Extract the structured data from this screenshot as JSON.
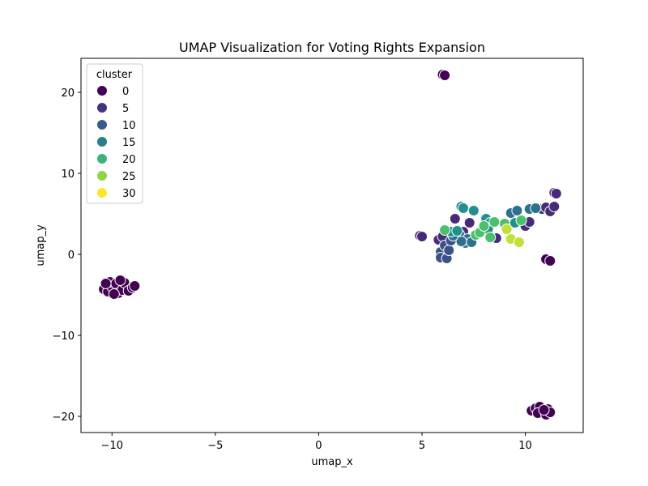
{
  "chart_data": {
    "type": "scatter",
    "title": "UMAP Visualization for Voting Rights Expansion",
    "xlabel": "umap_x",
    "ylabel": "umap_y",
    "xlim": [
      -11.5,
      12.8
    ],
    "ylim": [
      -22,
      24.2
    ],
    "xticks": [
      -10,
      -5,
      0,
      5,
      10
    ],
    "yticks": [
      -20,
      -10,
      0,
      10,
      20
    ],
    "grid": false,
    "legend": {
      "title": "cluster",
      "placement": "top-left",
      "entries": [
        {
          "label": "0",
          "color": "#440154"
        },
        {
          "label": "5",
          "color": "#46337e"
        },
        {
          "label": "10",
          "color": "#365c8d"
        },
        {
          "label": "15",
          "color": "#277f8e"
        },
        {
          "label": "20",
          "color": "#36b779"
        },
        {
          "label": "25",
          "color": "#8ed645"
        },
        {
          "label": "30",
          "color": "#fde725"
        }
      ]
    },
    "points": [
      {
        "x": -10.4,
        "y": -4.3,
        "cluster": 0
      },
      {
        "x": -10.2,
        "y": -4.6,
        "cluster": 0
      },
      {
        "x": -10.0,
        "y": -4.0,
        "cluster": 0
      },
      {
        "x": -10.1,
        "y": -3.4,
        "cluster": 0
      },
      {
        "x": -9.8,
        "y": -3.6,
        "cluster": 0
      },
      {
        "x": -9.7,
        "y": -4.8,
        "cluster": 0
      },
      {
        "x": -9.5,
        "y": -4.4,
        "cluster": 0
      },
      {
        "x": -9.4,
        "y": -3.5,
        "cluster": 0
      },
      {
        "x": -9.2,
        "y": -4.5,
        "cluster": 0
      },
      {
        "x": -9.0,
        "y": -4.1,
        "cluster": 0
      },
      {
        "x": -8.9,
        "y": -3.9,
        "cluster": 0
      },
      {
        "x": -9.9,
        "y": -4.9,
        "cluster": 0
      },
      {
        "x": -10.3,
        "y": -3.6,
        "cluster": 0
      },
      {
        "x": -9.6,
        "y": -3.2,
        "cluster": 0
      },
      {
        "x": 6.0,
        "y": 22.2,
        "cluster": 0
      },
      {
        "x": 6.1,
        "y": 22.1,
        "cluster": 0
      },
      {
        "x": 10.3,
        "y": -19.3,
        "cluster": 0
      },
      {
        "x": 10.5,
        "y": -19.0,
        "cluster": 0
      },
      {
        "x": 10.7,
        "y": -18.8,
        "cluster": 0
      },
      {
        "x": 10.6,
        "y": -19.6,
        "cluster": 0
      },
      {
        "x": 11.0,
        "y": -19.8,
        "cluster": 0
      },
      {
        "x": 11.1,
        "y": -19.1,
        "cluster": 0
      },
      {
        "x": 11.2,
        "y": -19.5,
        "cluster": 0
      },
      {
        "x": 10.9,
        "y": -19.2,
        "cluster": 0
      },
      {
        "x": 11.0,
        "y": -0.6,
        "cluster": 0
      },
      {
        "x": 11.2,
        "y": -0.8,
        "cluster": 0
      },
      {
        "x": 4.9,
        "y": 2.3,
        "cluster": 5
      },
      {
        "x": 5.0,
        "y": 2.2,
        "cluster": 5
      },
      {
        "x": 5.8,
        "y": 1.8,
        "cluster": 5
      },
      {
        "x": 6.0,
        "y": 2.2,
        "cluster": 5
      },
      {
        "x": 6.6,
        "y": 4.4,
        "cluster": 5
      },
      {
        "x": 7.0,
        "y": 2.8,
        "cluster": 5
      },
      {
        "x": 7.3,
        "y": 3.9,
        "cluster": 5
      },
      {
        "x": 8.6,
        "y": 2.0,
        "cluster": 5
      },
      {
        "x": 10.0,
        "y": 3.5,
        "cluster": 5
      },
      {
        "x": 10.2,
        "y": 4.0,
        "cluster": 5
      },
      {
        "x": 10.8,
        "y": 5.6,
        "cluster": 5
      },
      {
        "x": 11.0,
        "y": 5.8,
        "cluster": 5
      },
      {
        "x": 11.2,
        "y": 5.3,
        "cluster": 5
      },
      {
        "x": 11.4,
        "y": 5.9,
        "cluster": 5
      },
      {
        "x": 11.4,
        "y": 7.6,
        "cluster": 5
      },
      {
        "x": 11.5,
        "y": 7.5,
        "cluster": 5
      },
      {
        "x": 5.9,
        "y": 0.3,
        "cluster": 10
      },
      {
        "x": 5.9,
        "y": -0.4,
        "cluster": 10
      },
      {
        "x": 6.1,
        "y": 1.1,
        "cluster": 10
      },
      {
        "x": 6.2,
        "y": -0.5,
        "cluster": 10
      },
      {
        "x": 6.3,
        "y": 0.5,
        "cluster": 10
      },
      {
        "x": 6.4,
        "y": 1.7,
        "cluster": 10
      },
      {
        "x": 6.8,
        "y": 2.5,
        "cluster": 10
      },
      {
        "x": 7.1,
        "y": 1.4,
        "cluster": 15
      },
      {
        "x": 7.2,
        "y": 1.9,
        "cluster": 15
      },
      {
        "x": 7.4,
        "y": 1.5,
        "cluster": 15
      },
      {
        "x": 6.9,
        "y": 1.6,
        "cluster": 15
      },
      {
        "x": 6.5,
        "y": 2.3,
        "cluster": 15
      },
      {
        "x": 9.3,
        "y": 5.1,
        "cluster": 15
      },
      {
        "x": 9.6,
        "y": 5.4,
        "cluster": 15
      },
      {
        "x": 10.2,
        "y": 5.6,
        "cluster": 15
      },
      {
        "x": 10.5,
        "y": 5.7,
        "cluster": 15
      },
      {
        "x": 6.9,
        "y": 5.9,
        "cluster": 20
      },
      {
        "x": 7.0,
        "y": 5.7,
        "cluster": 20
      },
      {
        "x": 7.5,
        "y": 5.4,
        "cluster": 20
      },
      {
        "x": 6.4,
        "y": 2.8,
        "cluster": 20
      },
      {
        "x": 6.7,
        "y": 2.9,
        "cluster": 20
      },
      {
        "x": 8.1,
        "y": 4.4,
        "cluster": 20
      },
      {
        "x": 8.3,
        "y": 3.9,
        "cluster": 20
      },
      {
        "x": 8.2,
        "y": 3.1,
        "cluster": 20
      },
      {
        "x": 9.5,
        "y": 3.9,
        "cluster": 20
      },
      {
        "x": 6.1,
        "y": 3.0,
        "cluster": 25
      },
      {
        "x": 7.6,
        "y": 2.4,
        "cluster": 25
      },
      {
        "x": 7.8,
        "y": 2.7,
        "cluster": 25
      },
      {
        "x": 8.0,
        "y": 3.5,
        "cluster": 25
      },
      {
        "x": 8.3,
        "y": 2.1,
        "cluster": 25
      },
      {
        "x": 8.5,
        "y": 4.0,
        "cluster": 25
      },
      {
        "x": 9.0,
        "y": 3.8,
        "cluster": 25
      },
      {
        "x": 9.8,
        "y": 4.2,
        "cluster": 25
      },
      {
        "x": 9.1,
        "y": 3.1,
        "cluster": 30
      },
      {
        "x": 9.3,
        "y": 1.9,
        "cluster": 30
      },
      {
        "x": 9.7,
        "y": 1.5,
        "cluster": 30
      }
    ]
  }
}
